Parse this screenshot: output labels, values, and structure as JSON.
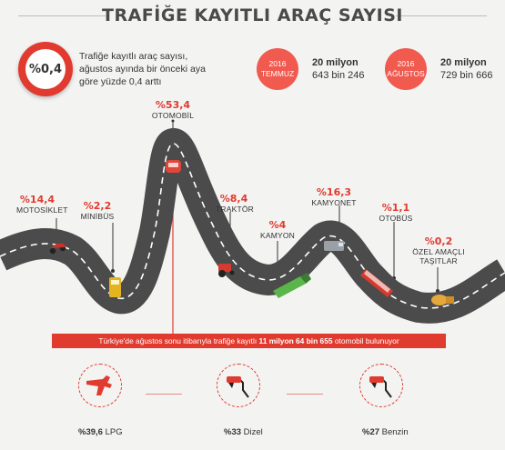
{
  "title": "TRAFİĞE KAYITLI ARAÇ SAYISI",
  "badge": {
    "value": "%0,4"
  },
  "intro": "Trafiğe kayıtlı araç sayısı, ağustos ayında bir önceki aya göre yüzde 0,4 arttı",
  "months": [
    {
      "year": "2016",
      "month": "TEMMUZ",
      "value_line1": "20 milyon",
      "value_line2": "643 bin 246"
    },
    {
      "year": "2016",
      "month": "AĞUSTOS",
      "value_line1": "20 milyon",
      "value_line2": "729 bin 666"
    }
  ],
  "vehicles": [
    {
      "pct": "%14,4",
      "label": "MOTOSİKLET"
    },
    {
      "pct": "%2,2",
      "label": "MİNİBÜS"
    },
    {
      "pct": "%53,4",
      "label": "OTOMOBİL"
    },
    {
      "pct": "%8,4",
      "label": "TRAKTÖR"
    },
    {
      "pct": "%4",
      "label": "KAMYON"
    },
    {
      "pct": "%16,3",
      "label": "KAMYONET"
    },
    {
      "pct": "%1,1",
      "label": "OTOBÜS"
    },
    {
      "pct": "%0,2",
      "label_line1": "ÖZEL AMAÇLI",
      "label_line2": "TAŞITLAR"
    }
  ],
  "banner": {
    "pre": "Türkiye'de ağustos sonu itibarıyla trafiğe kayıtlı ",
    "highlight": "11 milyon 64 bin 655",
    "post": " otomobil bulunuyor"
  },
  "fuels": [
    {
      "pct": "%39,6",
      "name": "LPG",
      "icon": "lpg-nozzle-icon"
    },
    {
      "pct": "%33",
      "name": "Dizel",
      "icon": "fuel-nozzle-icon"
    },
    {
      "pct": "%27",
      "name": "Benzin",
      "icon": "fuel-nozzle-icon"
    }
  ],
  "colors": {
    "accent": "#e13a2e",
    "road": "#4b4b4b",
    "background": "#f3f3f2"
  }
}
